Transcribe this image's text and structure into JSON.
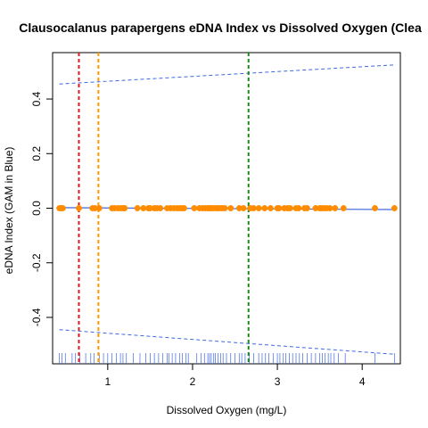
{
  "chart_data": {
    "type": "scatter",
    "title": "Clausocalanus parapergens eDNA Index vs Dissolved Oxygen (Clea",
    "xlabel": "Dissolved Oxygen (mg/L)",
    "ylabel": "eDNA Index (GAM in Blue)",
    "xlim": [
      0.35,
      4.45
    ],
    "ylim": [
      -0.57,
      0.57
    ],
    "x_ticks": [
      1,
      2,
      3,
      4
    ],
    "y_ticks": [
      -0.4,
      -0.2,
      0.0,
      0.2,
      0.4
    ],
    "x_tick_labels": [
      "1",
      "2",
      "3",
      "4"
    ],
    "y_tick_labels": [
      "-0.4",
      "-0.2",
      "0.0",
      "0.2",
      "0.4"
    ],
    "grid": false,
    "points_color": "#ff8c00",
    "gam_color": "#4169e1",
    "points": {
      "x": [
        0.43,
        0.45,
        0.47,
        0.66,
        0.82,
        0.85,
        0.9,
        1.05,
        1.08,
        1.12,
        1.15,
        1.18,
        1.2,
        1.35,
        1.42,
        1.48,
        1.5,
        1.55,
        1.58,
        1.62,
        1.7,
        1.74,
        1.78,
        1.82,
        1.85,
        1.88,
        1.9,
        2.02,
        2.08,
        2.12,
        2.15,
        2.18,
        2.2,
        2.22,
        2.25,
        2.28,
        2.3,
        2.32,
        2.35,
        2.38,
        2.45,
        2.55,
        2.6,
        2.68,
        2.72,
        2.78,
        2.85,
        2.92,
        3.0,
        3.02,
        3.08,
        3.12,
        3.15,
        3.22,
        3.25,
        3.32,
        3.35,
        3.45,
        3.5,
        3.52,
        3.55,
        3.58,
        3.62,
        3.68,
        3.78,
        4.15,
        4.38
      ],
      "y": [
        0.0,
        0.0,
        0.0,
        0.0,
        0.0,
        0.0,
        0.0,
        0.0,
        0.0,
        0.0,
        0.0,
        0.0,
        0.0,
        0.0,
        0.0,
        0.0,
        0.0,
        0.0,
        0.0,
        0.0,
        0.0,
        0.0,
        0.0,
        0.0,
        0.0,
        0.0,
        0.0,
        0.0,
        0.0,
        0.0,
        0.0,
        0.0,
        0.0,
        0.0,
        0.0,
        0.0,
        0.0,
        0.0,
        0.0,
        0.0,
        0.0,
        0.0,
        0.0,
        0.0,
        0.0,
        0.0,
        0.0,
        0.0,
        0.0,
        0.0,
        0.0,
        0.0,
        0.0,
        0.0,
        0.0,
        0.0,
        0.0,
        0.0,
        0.0,
        0.0,
        0.0,
        0.0,
        0.0,
        0.0,
        0.0,
        0.0,
        0.0
      ]
    },
    "gam_fit": {
      "x": [
        0.43,
        4.38
      ],
      "y": [
        0.002,
        -0.005
      ]
    },
    "confidence_bands": {
      "upper": {
        "x": [
          0.43,
          4.38
        ],
        "y": [
          0.455,
          0.525
        ]
      },
      "lower": {
        "x": [
          0.43,
          4.38
        ],
        "y": [
          -0.445,
          -0.535
        ]
      }
    },
    "vertical_lines": [
      {
        "x": 0.66,
        "color": "#e31a1c"
      },
      {
        "x": 0.89,
        "color": "#ff9900"
      },
      {
        "x": 2.66,
        "color": "#1a8a1a"
      }
    ],
    "rug": {
      "x": [
        0.43,
        0.46,
        0.5,
        0.58,
        0.62,
        0.67,
        0.74,
        0.8,
        0.84,
        0.9,
        0.95,
        1.0,
        1.05,
        1.1,
        1.15,
        1.18,
        1.22,
        1.3,
        1.38,
        1.45,
        1.5,
        1.55,
        1.6,
        1.65,
        1.7,
        1.72,
        1.76,
        1.8,
        1.85,
        1.88,
        1.92,
        1.95,
        2.05,
        2.1,
        2.14,
        2.18,
        2.2,
        2.22,
        2.25,
        2.27,
        2.3,
        2.33,
        2.36,
        2.4,
        2.45,
        2.5,
        2.55,
        2.58,
        2.62,
        2.67,
        2.72,
        2.78,
        2.82,
        2.86,
        2.9,
        2.95,
        3.0,
        3.03,
        3.07,
        3.1,
        3.14,
        3.18,
        3.22,
        3.26,
        3.3,
        3.35,
        3.4,
        3.45,
        3.5,
        3.53,
        3.56,
        3.6,
        3.63,
        3.67,
        3.72,
        3.8,
        4.15,
        4.38
      ],
      "color": "#4169e1"
    }
  }
}
